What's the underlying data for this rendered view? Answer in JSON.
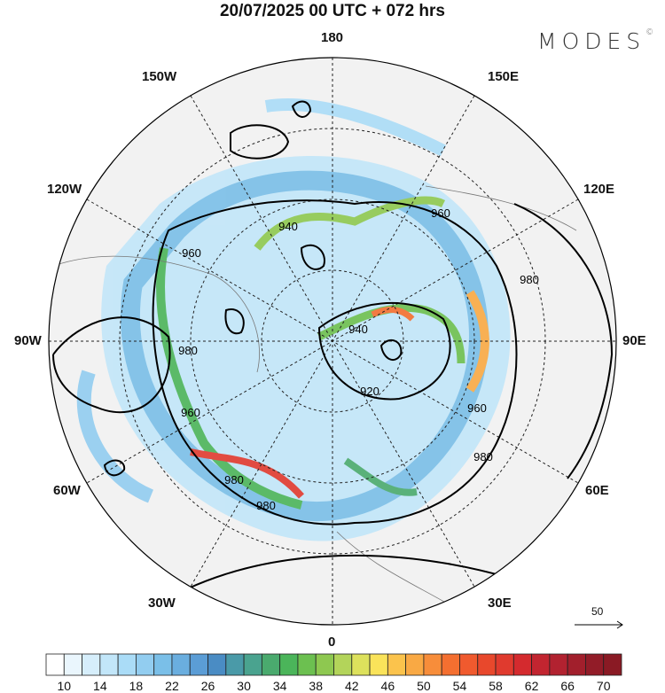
{
  "title": "20/07/2025  00 UTC  + 072 hrs",
  "brand": "MODES",
  "brand_mark": "©",
  "longitude_labels": {
    "top": "180",
    "bottom": "0",
    "left": "90W",
    "right": "90E",
    "nw": "150W",
    "wnw": "120W",
    "ne": "150E",
    "ene": "120E",
    "sw": "30W",
    "wsw": "60W",
    "se": "30E",
    "ese": "60E"
  },
  "contour_labels": [
    "960",
    "940",
    "960",
    "980",
    "940",
    "920",
    "980",
    "960",
    "980",
    "960",
    "980",
    "980"
  ],
  "reference_vector_label": "50",
  "colorbar": {
    "labels": [
      "10",
      "14",
      "18",
      "22",
      "26",
      "30",
      "34",
      "38",
      "42",
      "46",
      "50",
      "54",
      "58",
      "62",
      "66",
      "70"
    ],
    "colors": [
      "#ffffff",
      "#eaf6fd",
      "#d6eefb",
      "#c2e6f9",
      "#aadcf7",
      "#92cdf0",
      "#7abfe8",
      "#6aaedf",
      "#5b9dd6",
      "#4a8cc4",
      "#4a9aa8",
      "#4aa38f",
      "#4aaa6e",
      "#4bb55a",
      "#6cc050",
      "#8ec850",
      "#b3d45a",
      "#dde15c",
      "#fae35a",
      "#fbc34c",
      "#f9a944",
      "#f78d3a",
      "#f46f30",
      "#f05a2e",
      "#e8482c",
      "#e03a2e",
      "#d42a2e",
      "#c22530",
      "#b22230",
      "#a21f2c",
      "#921c28",
      "#8a1a24"
    ]
  }
}
